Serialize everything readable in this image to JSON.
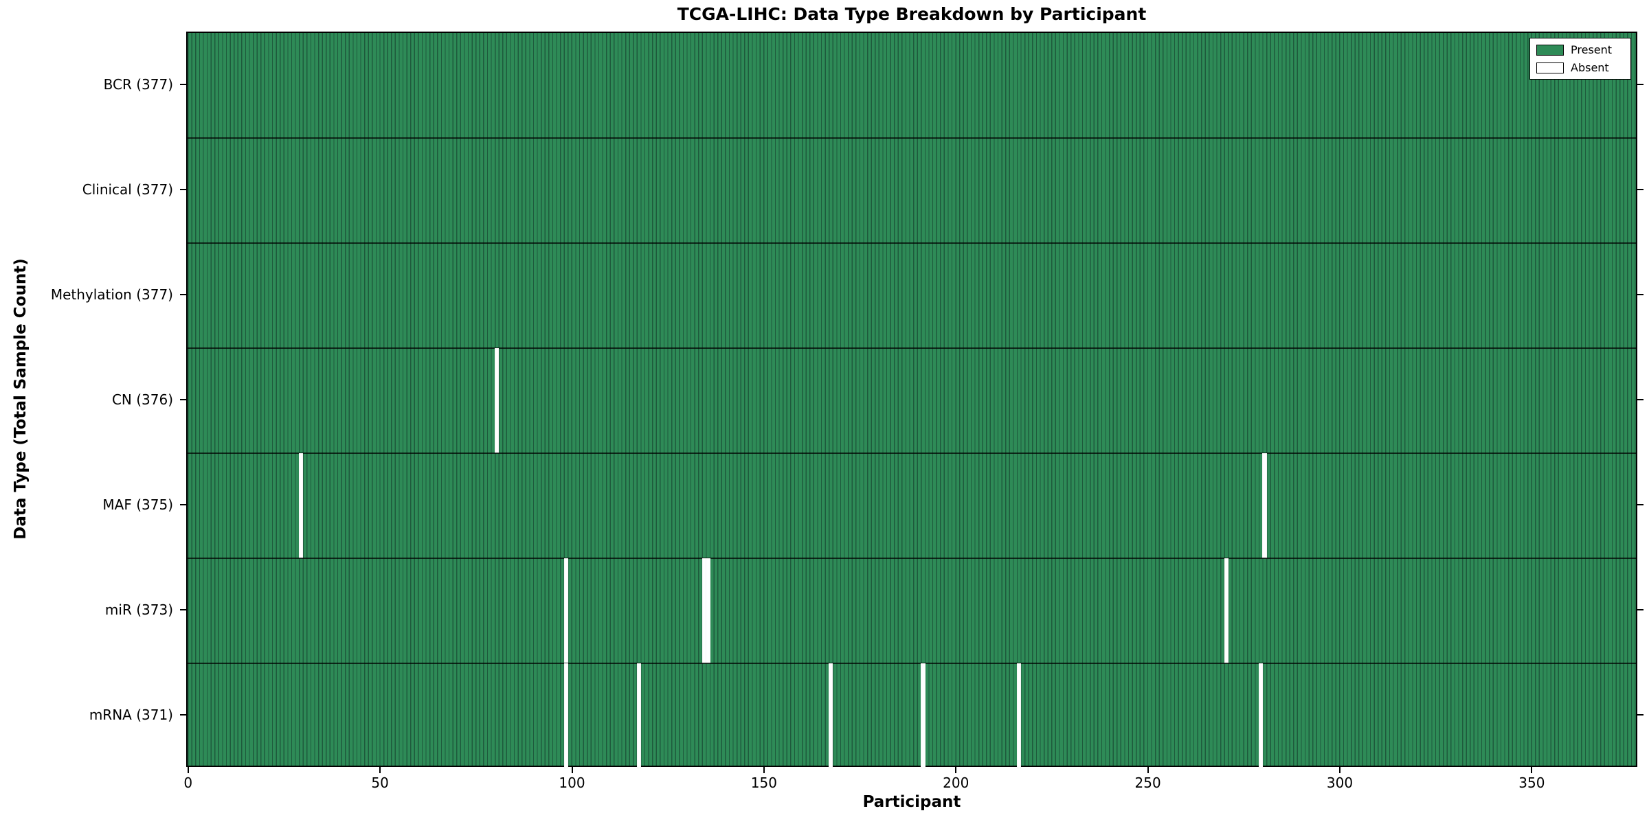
{
  "chart_data": {
    "type": "heatmap",
    "title": "TCGA-LIHC: Data Type Breakdown by Participant",
    "xlabel": "Participant",
    "ylabel": "Data Type (Total Sample Count)",
    "xlim": [
      -0.5,
      377.5
    ],
    "n_participants": 377,
    "x_ticks": [
      0,
      50,
      100,
      150,
      200,
      250,
      300,
      350
    ],
    "grid": false,
    "legend_position": "upper right",
    "colors": {
      "present_fill": "#2e8b57",
      "present_edge": "#1e5a3c",
      "absent_fill": "#ffffff",
      "axis": "#000000"
    },
    "legend": [
      {
        "label": "Present",
        "color": "#2e8b57"
      },
      {
        "label": "Absent",
        "color": "#ffffff"
      }
    ],
    "rows": [
      {
        "label": "BCR (377)",
        "name": "BCR",
        "total_samples": 377,
        "absent_participants": []
      },
      {
        "label": "Clinical (377)",
        "name": "Clinical",
        "total_samples": 377,
        "absent_participants": []
      },
      {
        "label": "Methylation (377)",
        "name": "Methylation",
        "total_samples": 377,
        "absent_participants": []
      },
      {
        "label": "CN (376)",
        "name": "CN",
        "total_samples": 376,
        "absent_participants": [
          80
        ]
      },
      {
        "label": "MAF (375)",
        "name": "MAF",
        "total_samples": 375,
        "absent_participants": [
          29,
          280
        ]
      },
      {
        "label": "miR (373)",
        "name": "miR",
        "total_samples": 373,
        "absent_participants": [
          98,
          134,
          135,
          270
        ]
      },
      {
        "label": "mRNA (371)",
        "name": "mRNA",
        "total_samples": 371,
        "absent_participants": [
          98,
          117,
          167,
          191,
          216,
          279
        ]
      }
    ]
  }
}
